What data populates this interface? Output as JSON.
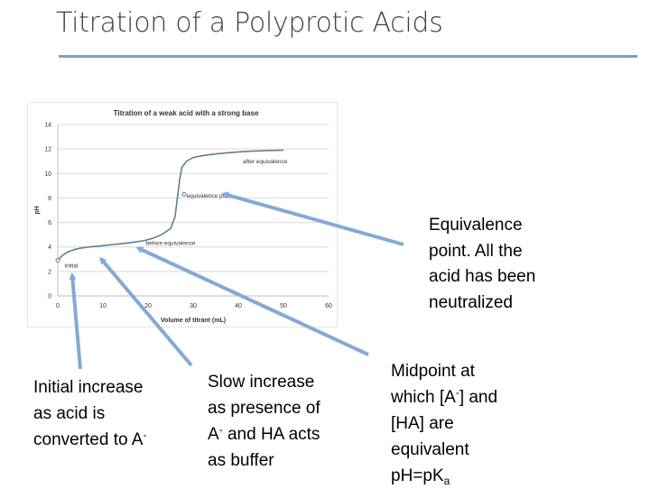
{
  "slide": {
    "title": "Titration of a Polyprotic Acids"
  },
  "colors": {
    "title_text": "#404040",
    "title_rule": "#7f9fcd",
    "curve": "#5d7f95",
    "arrow": "#85a9d6",
    "chart_text": "#333333",
    "grid": "#d9d9d9"
  },
  "chart_data": {
    "type": "line",
    "title": "Titration of a weak acid with a strong base",
    "xlabel": "Volume of titrant (mL)",
    "ylabel": "pH",
    "xlim": [
      0,
      60
    ],
    "ylim": [
      0,
      14
    ],
    "xticks": [
      "0",
      "10",
      "20",
      "30",
      "40",
      "50",
      "60"
    ],
    "yticks": [
      "0",
      "2",
      "4",
      "6",
      "8",
      "10",
      "12",
      "14"
    ],
    "grid": true,
    "series": [
      {
        "points": [
          [
            0,
            2.9
          ],
          [
            0.5,
            3.1
          ],
          [
            1,
            3.3
          ],
          [
            2,
            3.55
          ],
          [
            3,
            3.7
          ],
          [
            4,
            3.82
          ],
          [
            5,
            3.9
          ],
          [
            7,
            4.0
          ],
          [
            9,
            4.07
          ],
          [
            11,
            4.15
          ],
          [
            13,
            4.22
          ],
          [
            15,
            4.3
          ],
          [
            17,
            4.4
          ],
          [
            19,
            4.5
          ],
          [
            21,
            4.7
          ],
          [
            23,
            5.0
          ],
          [
            25,
            5.5
          ],
          [
            26,
            6.5
          ],
          [
            26.5,
            8.0
          ],
          [
            27,
            9.5
          ],
          [
            27.5,
            10.5
          ],
          [
            28.5,
            11.0
          ],
          [
            30,
            11.3
          ],
          [
            32,
            11.45
          ],
          [
            35,
            11.6
          ],
          [
            38,
            11.7
          ],
          [
            41,
            11.78
          ],
          [
            44,
            11.84
          ],
          [
            47,
            11.88
          ],
          [
            50,
            11.9
          ]
        ]
      }
    ],
    "annotations": [
      {
        "text": "after equivalence",
        "x": 41,
        "y": 11.0
      },
      {
        "text": "equivalence point",
        "x": 28.5,
        "y": 8.2
      },
      {
        "text": "before equivalence",
        "x": 19.5,
        "y": 4.35
      },
      {
        "text": "initial",
        "x": 1.5,
        "y": 2.5
      }
    ],
    "markers": [
      {
        "x": 0,
        "y": 2.9
      },
      {
        "x": 28,
        "y": 8.3
      }
    ]
  },
  "notes": {
    "equivalence": [
      "Equivalence",
      "point. All the",
      "acid has been",
      "neutralized"
    ],
    "initial": [
      "Initial increase",
      "as acid is",
      "converted to A"
    ],
    "initial_sup": "-",
    "buffer_line1": "Slow increase",
    "buffer_line2": "as presence of",
    "buffer_line3_a": "A",
    "buffer_line3_sup": "-",
    "buffer_line3_b": " and HA acts",
    "buffer_line4": "as buffer",
    "midpoint_line1": "Midpoint at",
    "midpoint_line2_a": "which [A",
    "midpoint_line2_sup": "-",
    "midpoint_line2_b": "] and",
    "midpoint_line3": "[HA] are",
    "midpoint_line4": "equivalent",
    "midpoint_line5_a": "pH=pK",
    "midpoint_line5_sub": "a"
  }
}
